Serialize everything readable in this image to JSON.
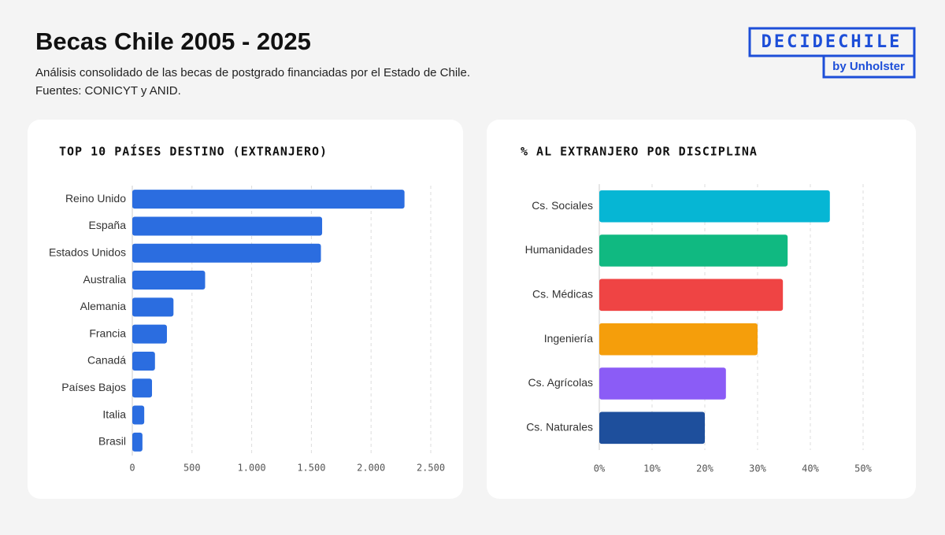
{
  "header": {
    "title": "Becas Chile 2005 - 2025",
    "subtitle": [
      "Análisis consolidado de las becas de postgrado financiadas por el Estado de Chile.",
      "Fuentes: CONICYT y ANID."
    ],
    "logo": "DECIDECHILE",
    "logo_sub": "by Unholster"
  },
  "chart_data": [
    {
      "type": "barh",
      "title": "TOP 10 PAÍSES DESTINO (EXTRANJERO)",
      "categories": [
        "Reino Unido",
        "España",
        "Estados Unidos",
        "Australia",
        "Alemania",
        "Francia",
        "Canadá",
        "Países Bajos",
        "Italia",
        "Brasil"
      ],
      "values": [
        2280,
        1590,
        1580,
        610,
        345,
        290,
        190,
        165,
        100,
        85
      ],
      "color": "#2b6de0",
      "xlim": [
        0,
        2500
      ],
      "xticks": [
        0,
        500,
        {
          "value": 1000,
          "label": "1.000"
        },
        {
          "value": 1500,
          "label": "1.500"
        },
        {
          "value": 2000,
          "label": "2.000"
        },
        {
          "value": 2500,
          "label": "2.500"
        }
      ],
      "grid": true
    },
    {
      "type": "barh",
      "title": "% AL EXTRANJERO POR DISCIPLINA",
      "categories": [
        "Cs. Sociales",
        "Humanidades",
        "Cs. Médicas",
        "Ingeniería",
        "Cs. Agrícolas",
        "Cs. Naturales"
      ],
      "values": [
        43.7,
        35.7,
        34.8,
        30,
        24,
        20
      ],
      "colors": [
        "#06b6d4",
        "#10b981",
        "#ef4444",
        "#f59e0b",
        "#8b5cf6",
        "#1e4f9c"
      ],
      "xlim": [
        0,
        50
      ],
      "xticks": [
        {
          "value": 0,
          "label": "0%"
        },
        {
          "value": 10,
          "label": "10%"
        },
        {
          "value": 20,
          "label": "20%"
        },
        {
          "value": 30,
          "label": "30%"
        },
        {
          "value": 40,
          "label": "40%"
        },
        {
          "value": 50,
          "label": "50%"
        }
      ],
      "grid": true
    }
  ]
}
